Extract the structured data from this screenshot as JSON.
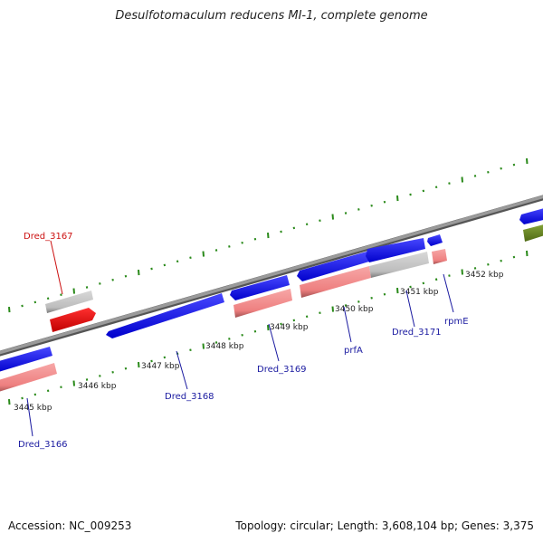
{
  "title": "Desulfotomaculum reducens MI-1, complete genome",
  "footer": {
    "accession": "Accession: NC_009253",
    "summary": "Topology: circular; Length: 3,608,104 bp; Genes: 3,375"
  },
  "colors": {
    "backbone": "#8c8c8c",
    "tick": "#2a8a1a",
    "cds_forward": "#1010ee",
    "cds_reverse": "#f08080",
    "gene_grey": "#c4c4c4",
    "gene_red": "#ee0000",
    "gene_olive": "#6b8c1e",
    "label_blue": "#1a1aa0",
    "label_red": "#cc1111"
  },
  "ticks": [
    {
      "label": "3445 kbp"
    },
    {
      "label": "3446 kbp"
    },
    {
      "label": "3447 kbp"
    },
    {
      "label": "3448 kbp"
    },
    {
      "label": "3449 kbp"
    },
    {
      "label": "3450 kbp"
    },
    {
      "label": "3451 kbp"
    },
    {
      "label": "3452 kbp"
    }
  ],
  "genes": [
    {
      "label": "Dred_3166",
      "color": "blue"
    },
    {
      "label": "Dred_3167",
      "color": "red"
    },
    {
      "label": "Dred_3168",
      "color": "blue"
    },
    {
      "label": "Dred_3169",
      "color": "blue"
    },
    {
      "label": "prfA",
      "color": "blue"
    },
    {
      "label": "Dred_3171",
      "color": "blue"
    },
    {
      "label": "rpmE",
      "color": "blue"
    }
  ]
}
